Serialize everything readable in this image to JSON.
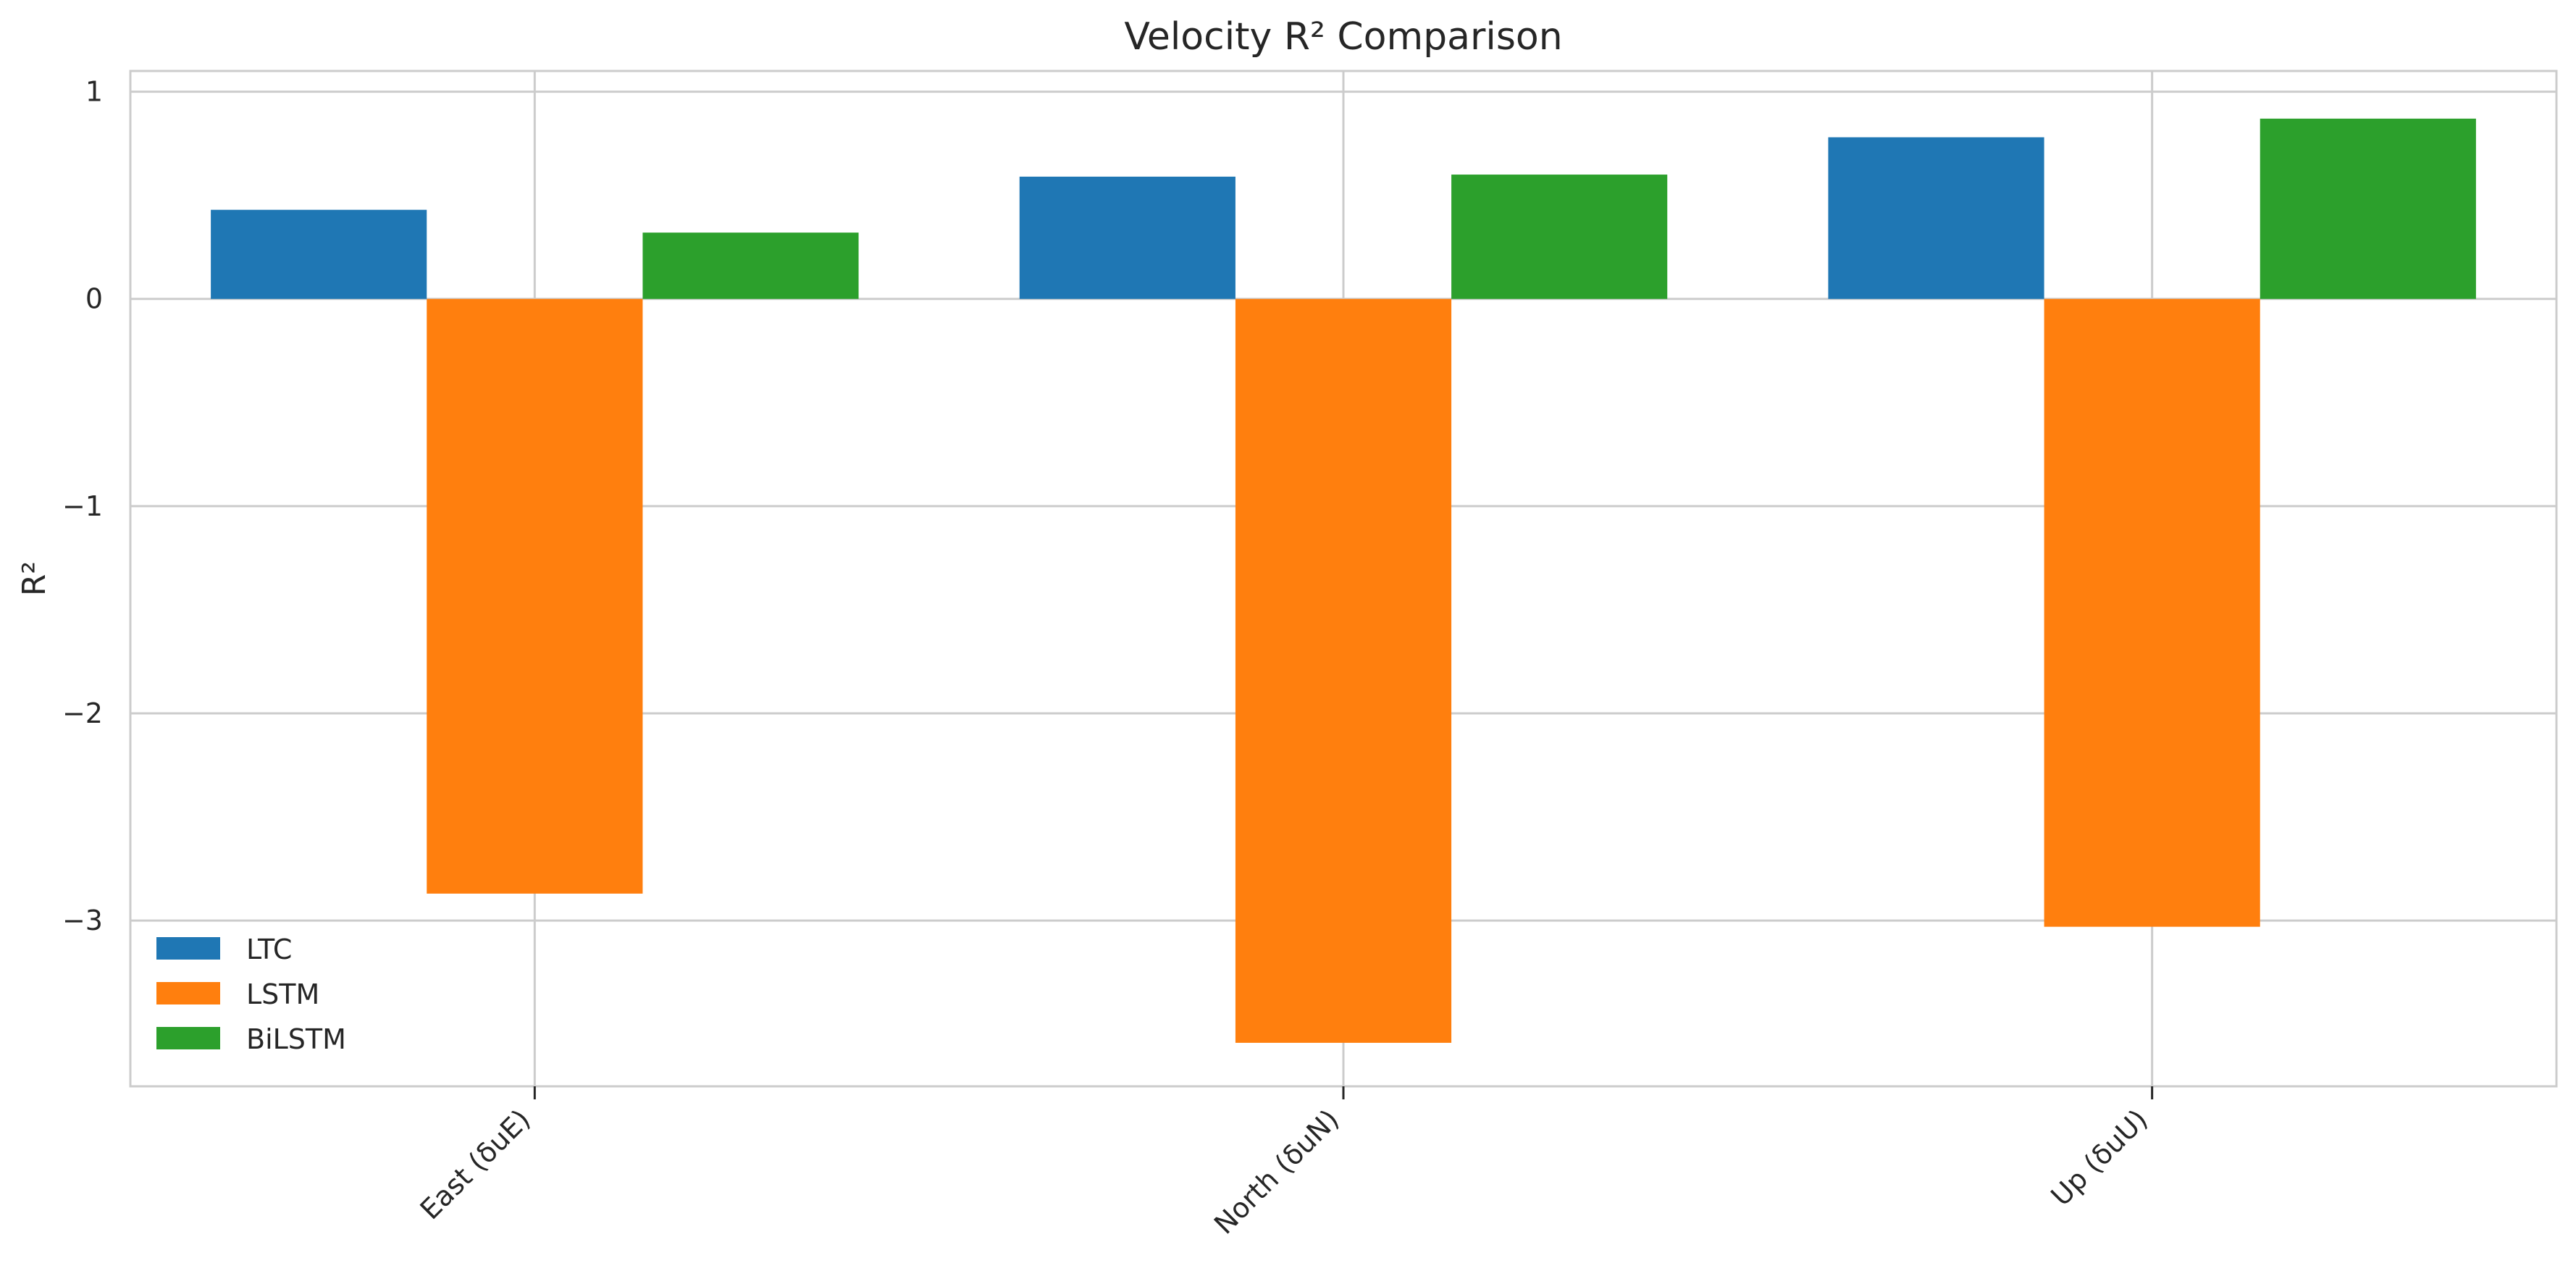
{
  "chart_data": {
    "type": "bar",
    "title": "Velocity R² Comparison",
    "xlabel": "",
    "ylabel": "R²",
    "categories": [
      "East (δuE)",
      "North (δuN)",
      "Up (δuU)"
    ],
    "series": [
      {
        "name": "LTC",
        "color": "#1f77b4",
        "values": [
          0.43,
          0.59,
          0.78
        ]
      },
      {
        "name": "LSTM",
        "color": "#ff7f0e",
        "values": [
          -2.87,
          -3.59,
          -3.03
        ]
      },
      {
        "name": "BiLSTM",
        "color": "#2ca02c",
        "values": [
          0.32,
          0.6,
          0.87
        ]
      }
    ],
    "ylim": [
      -3.8,
      1.1
    ],
    "yticks": [
      1,
      0,
      -1,
      -2,
      -3
    ],
    "ytick_labels": [
      "1",
      "0",
      "−1",
      "−2",
      "−3"
    ],
    "grid": true,
    "legend_position": "lower-left"
  }
}
